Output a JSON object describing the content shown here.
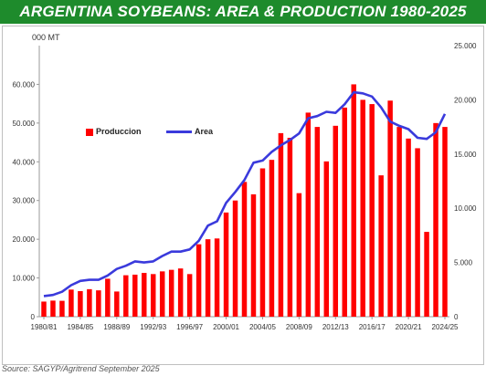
{
  "header": {
    "title": "ARGENTINA SOYBEANS: AREA & PRODUCTION 1980-2025"
  },
  "unit_label": "000 MT",
  "source_note": "Source: SAGYP/Agritrend  September 2025",
  "colors": {
    "title_bg": "#1e8b2c",
    "bars": "#ff0000",
    "line": "#3a3adc"
  },
  "chart_data": {
    "type": "bar",
    "categories": [
      "1980/81",
      "1981/82",
      "1982/83",
      "1983/84",
      "1984/85",
      "1985/86",
      "1986/87",
      "1987/88",
      "1988/89",
      "1989/90",
      "1990/91",
      "1991/92",
      "1992/93",
      "1993/94",
      "1994/95",
      "1995/96",
      "1996/97",
      "1997/98",
      "1998/99",
      "1999/00",
      "2000/01",
      "2001/02",
      "2002/03",
      "2003/04",
      "2004/05",
      "2005/06",
      "2006/07",
      "2007/08",
      "2008/09",
      "2009/10",
      "2010/11",
      "2011/12",
      "2012/13",
      "2013/14",
      "2014/15",
      "2015/16",
      "2016/17",
      "2017/18",
      "2018/19",
      "2019/20",
      "2020/21",
      "2021/22",
      "2022/23",
      "2023/24",
      "2024/25"
    ],
    "x_tick_labels": [
      "1980/81",
      "1984/85",
      "1988/89",
      "1992/93",
      "1996/97",
      "2000/01",
      "2004/05",
      "2008/09",
      "2012/13",
      "2016/17",
      "2020/21",
      "2024/25"
    ],
    "series": [
      {
        "name": "Produccion",
        "axis": "left",
        "values": [
          3900,
          4150,
          4100,
          7000,
          6600,
          7100,
          6800,
          9800,
          6500,
          10700,
          10850,
          11300,
          11000,
          11700,
          12100,
          12450,
          11000,
          18700,
          20000,
          20200,
          26900,
          30000,
          34800,
          31600,
          38300,
          40500,
          47400,
          46200,
          31900,
          52700,
          49000,
          40100,
          49300,
          54000,
          60000,
          56000,
          54900,
          36500,
          55800,
          49000,
          46000,
          43500,
          21900,
          50000,
          49000
        ]
      },
      {
        "name": "Area",
        "axis": "right",
        "values": [
          1900,
          2000,
          2300,
          2900,
          3300,
          3400,
          3400,
          3800,
          4400,
          4700,
          5100,
          5000,
          5100,
          5600,
          6000,
          6000,
          6200,
          7000,
          8400,
          8800,
          10500,
          11500,
          12600,
          14200,
          14400,
          15200,
          15800,
          16300,
          16900,
          18300,
          18500,
          18900,
          18800,
          19600,
          20700,
          20600,
          20300,
          19300,
          18000,
          17600,
          17300,
          16500,
          16400,
          17000,
          18700
        ]
      }
    ],
    "left_axis": {
      "range": [
        0,
        70000
      ],
      "ticks": [
        "0",
        "10.000",
        "20.000",
        "30.000",
        "40.000",
        "50.000",
        "60.000"
      ]
    },
    "right_axis": {
      "range": [
        0,
        25000
      ],
      "ticks": [
        "0",
        "5.000",
        "10.000",
        "15.000",
        "20.000",
        "25.000"
      ]
    },
    "legend_position": "upper-left",
    "grid": "none"
  }
}
